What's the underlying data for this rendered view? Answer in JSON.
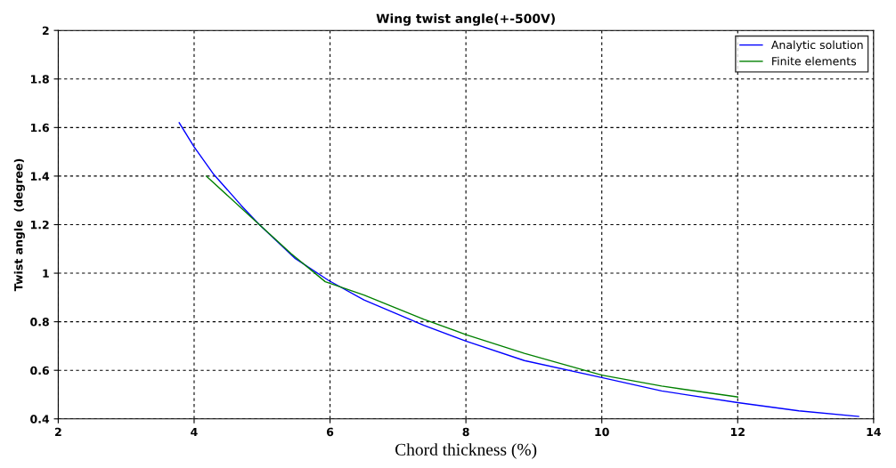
{
  "chart_data": {
    "type": "line",
    "title": "Wing twist angle(+-500V)",
    "xlabel": "Chord thickness (%)",
    "ylabel": "Twist angle  (degree)",
    "xlim": [
      2,
      14
    ],
    "xticks": [
      2,
      4,
      6,
      8,
      10,
      12,
      14
    ],
    "ylim": [
      0.4,
      2
    ],
    "yticks": [
      0.4,
      0.6,
      0.8,
      1,
      1.2,
      1.4,
      1.6,
      1.8,
      2
    ],
    "grid": true,
    "legend": "top right",
    "line_style": "solid",
    "series": [
      {
        "name": "Analytic solution",
        "color": "#0000ff",
        "x": [
          3.78,
          4,
          4.28,
          4.69,
          4.96,
          5.49,
          5.98,
          6.5,
          7.38,
          8,
          8.86,
          10,
          10.88,
          12,
          12.9,
          13.78
        ],
        "values": [
          1.62,
          1.52,
          1.41,
          1.28,
          1.2,
          1.06,
          0.97,
          0.89,
          0.785,
          0.72,
          0.64,
          0.57,
          0.515,
          0.467,
          0.433,
          0.41
        ]
      },
      {
        "name": "Finite elements",
        "color": "#008000",
        "x": [
          4.18,
          4.96,
          5.43,
          5.93,
          6.5,
          7.38,
          8,
          8.86,
          10,
          10.88,
          12
        ],
        "values": [
          1.4,
          1.2,
          1.08,
          0.965,
          0.91,
          0.81,
          0.747,
          0.67,
          0.58,
          0.535,
          0.49
        ]
      }
    ]
  }
}
